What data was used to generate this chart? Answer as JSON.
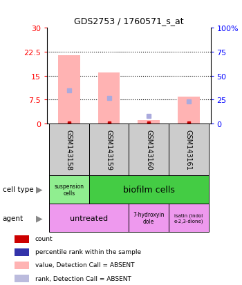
{
  "title": "GDS2753 / 1760571_s_at",
  "samples": [
    "GSM143158",
    "GSM143159",
    "GSM143160",
    "GSM143161"
  ],
  "bar_values": [
    21.5,
    16.0,
    1.2,
    8.5
  ],
  "rank_percent": [
    35,
    27,
    8,
    23
  ],
  "ylim_left": [
    0,
    30
  ],
  "ylim_right": [
    0,
    100
  ],
  "yticks_left": [
    0,
    7.5,
    15,
    22.5,
    30
  ],
  "yticks_right": [
    0,
    25,
    50,
    75,
    100
  ],
  "bar_color": "#ffb3b3",
  "rank_color": "#aaaadd",
  "count_color": "#cc0000",
  "bg_color": "#ffffff",
  "suspension_color": "#90ee90",
  "biofilm_color": "#44cc44",
  "agent_color": "#ee99ee",
  "agent2_color": "#ee99ee",
  "sample_box_color": "#cccccc",
  "grid_color": "black"
}
